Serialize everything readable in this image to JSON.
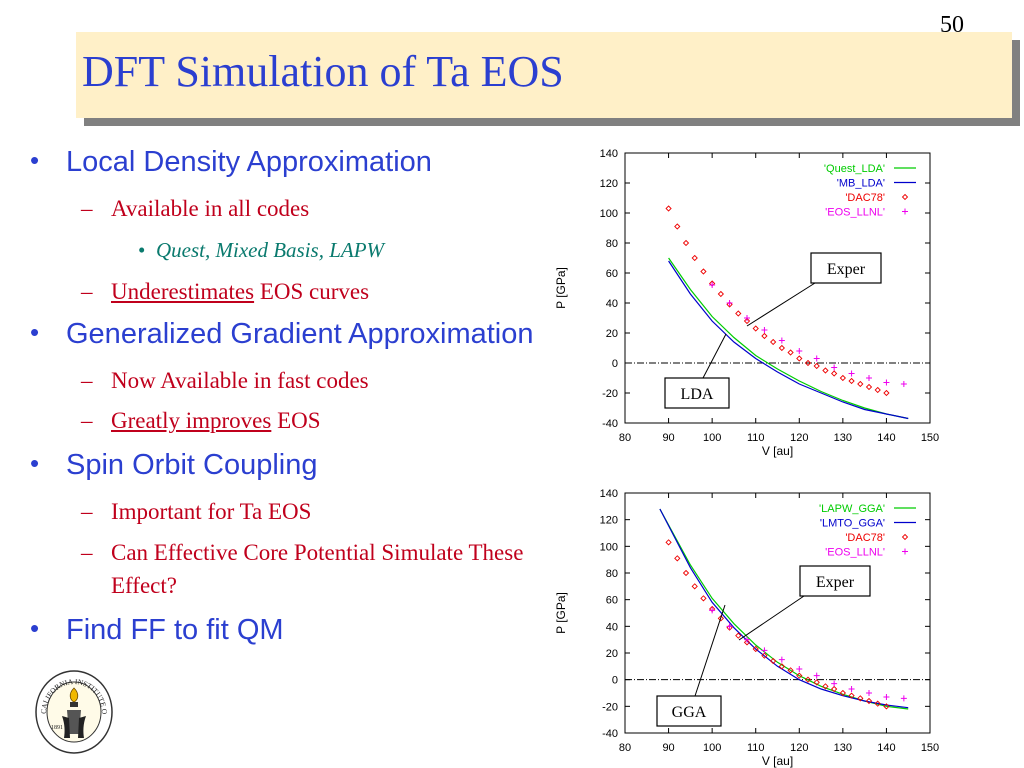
{
  "slide": {
    "number": "50",
    "title": "DFT Simulation of Ta EOS"
  },
  "bullets": {
    "b1": "Local Density Approximation",
    "b1a": "Available in all codes",
    "b1a1": "Quest, Mixed Basis, LAPW",
    "b1b_under": "Underestimates",
    "b1b_rest": " EOS curves",
    "b2": "Generalized Gradient Approximation",
    "b2a": "Now Available in fast codes",
    "b2b_under": "Greatly improves",
    "b2b_rest": " EOS",
    "b3": "Spin Orbit Coupling",
    "b3a": "Important for Ta EOS",
    "b3b_line1": "Can Effective Core Potential Simulate These",
    "b3b_line2": "Effect?",
    "b4": "Find FF to fit QM"
  },
  "seal": {
    "text": "CALIFORNIA INSTITUTE OF TECHNOLOGY",
    "year": "1891"
  },
  "colors": {
    "title_blue": "#2b3fd0",
    "title_bg": "#fff0c8",
    "sub_red": "#c0001c",
    "italic_teal": "#0a7a6e",
    "green": "#00cc00",
    "blue": "#0000cc",
    "red": "#ee0000",
    "magenta": "#ee00ee"
  },
  "chart_data": [
    {
      "type": "line",
      "xlabel": "V [au]",
      "ylabel": "P [GPa]",
      "xlim": [
        80,
        150
      ],
      "ylim": [
        -40,
        140
      ],
      "xticks": [
        80,
        90,
        100,
        110,
        120,
        130,
        140,
        150
      ],
      "yticks": [
        -40,
        -20,
        0,
        20,
        40,
        60,
        80,
        100,
        120,
        140
      ],
      "legend_position": "top-right",
      "series": [
        {
          "name": "'Quest_LDA'",
          "style": "line",
          "color": "#00cc00",
          "x": [
            90,
            95,
            100,
            105,
            110,
            115,
            120,
            125,
            130,
            135,
            140,
            145
          ],
          "y": [
            70,
            49,
            31,
            17,
            5,
            -4,
            -12,
            -19,
            -25,
            -30,
            -34,
            -37
          ]
        },
        {
          "name": "'MB_LDA'",
          "style": "line",
          "color": "#0000cc",
          "x": [
            90,
            95,
            100,
            105,
            110,
            115,
            120,
            125,
            130,
            135,
            140,
            145
          ],
          "y": [
            68,
            46,
            28,
            14,
            3,
            -6,
            -14,
            -20,
            -26,
            -31,
            -34,
            -37
          ]
        },
        {
          "name": "'DAC78'",
          "style": "diamond",
          "color": "#ee0000",
          "x": [
            90,
            92,
            94,
            96,
            98,
            100,
            102,
            104,
            106,
            108,
            110,
            112,
            114,
            116,
            118,
            120,
            122,
            124,
            126,
            128,
            130,
            132,
            134,
            136,
            138,
            140
          ],
          "y": [
            103,
            91,
            80,
            70,
            61,
            53,
            46,
            39,
            33,
            28,
            23,
            18,
            14,
            10,
            7,
            3,
            0,
            -2,
            -5,
            -7,
            -10,
            -12,
            -14,
            -16,
            -18,
            -20
          ]
        },
        {
          "name": "'EOS_LLNL'",
          "style": "plus",
          "color": "#ee00ee",
          "x": [
            100,
            104,
            108,
            112,
            116,
            120,
            124,
            128,
            132,
            136,
            140,
            144
          ],
          "y": [
            52,
            40,
            30,
            22,
            15,
            8,
            3,
            -3,
            -7,
            -10,
            -13,
            -14
          ]
        }
      ],
      "annotations": [
        "Exper",
        "LDA"
      ]
    },
    {
      "type": "line",
      "xlabel": "V [au]",
      "ylabel": "P [GPa]",
      "xlim": [
        80,
        150
      ],
      "ylim": [
        -40,
        140
      ],
      "xticks": [
        80,
        90,
        100,
        110,
        120,
        130,
        140,
        150
      ],
      "yticks": [
        -40,
        -20,
        0,
        20,
        40,
        60,
        80,
        100,
        120,
        140
      ],
      "legend_position": "top-right",
      "series": [
        {
          "name": "'LAPW_GGA'",
          "style": "line",
          "color": "#00cc00",
          "x": [
            88,
            95,
            100,
            105,
            110,
            115,
            120,
            125,
            130,
            135,
            140,
            145
          ],
          "y": [
            128,
            86,
            61,
            42,
            26,
            13,
            3,
            -5,
            -11,
            -16,
            -20,
            -22
          ]
        },
        {
          "name": "'LMTO_GGA'",
          "style": "line",
          "color": "#0000cc",
          "x": [
            88,
            95,
            100,
            105,
            110,
            115,
            120,
            125,
            130,
            135,
            140,
            145
          ],
          "y": [
            128,
            84,
            58,
            39,
            23,
            10,
            0,
            -7,
            -12,
            -16,
            -19,
            -21
          ]
        },
        {
          "name": "'DAC78'",
          "style": "diamond",
          "color": "#ee0000",
          "x": [
            90,
            92,
            94,
            96,
            98,
            100,
            102,
            104,
            106,
            108,
            110,
            112,
            114,
            116,
            118,
            120,
            122,
            124,
            126,
            128,
            130,
            132,
            134,
            136,
            138,
            140
          ],
          "y": [
            103,
            91,
            80,
            70,
            61,
            53,
            46,
            39,
            33,
            28,
            23,
            18,
            14,
            10,
            7,
            3,
            0,
            -2,
            -5,
            -7,
            -10,
            -12,
            -14,
            -16,
            -18,
            -20
          ]
        },
        {
          "name": "'EOS_LLNL'",
          "style": "plus",
          "color": "#ee00ee",
          "x": [
            100,
            104,
            108,
            112,
            116,
            120,
            124,
            128,
            132,
            136,
            140,
            144
          ],
          "y": [
            52,
            40,
            30,
            22,
            15,
            8,
            3,
            -3,
            -7,
            -10,
            -13,
            -14
          ]
        }
      ],
      "annotations": [
        "Exper",
        "GGA"
      ]
    }
  ]
}
